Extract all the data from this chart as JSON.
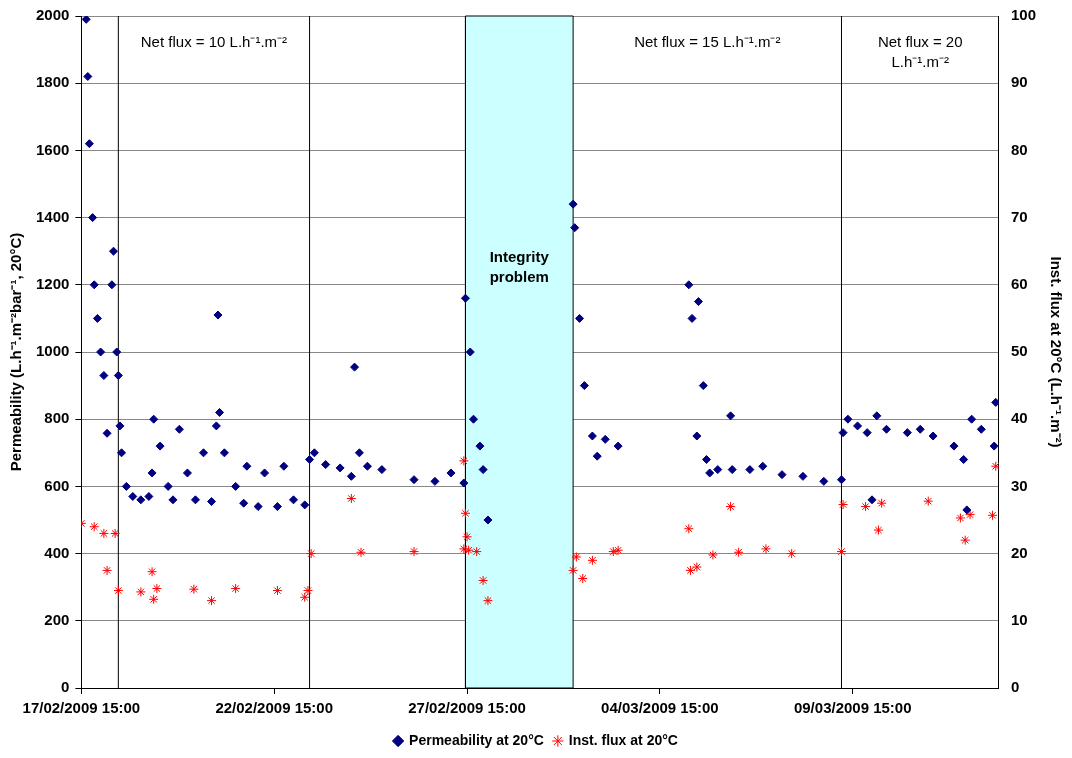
{
  "chart_data": {
    "type": "scatter",
    "xlabel": null,
    "ylabel": "Permeability (L.h⁻¹.m⁻²bar⁻¹, 20°C)",
    "y2label": "Inst. flux at 20°C (L.h⁻¹.m⁻²)",
    "xlim": [
      "2009-02-17T15:00",
      "2009-03-13T10:00"
    ],
    "xticks": [
      {
        "value": "2009-02-17T15:00",
        "label": "17/02/2009 15:00"
      },
      {
        "value": "2009-02-22T15:00",
        "label": "22/02/2009 15:00"
      },
      {
        "value": "2009-02-27T15:00",
        "label": "27/02/2009 15:00"
      },
      {
        "value": "2009-03-04T15:00",
        "label": "04/03/2009 15:00"
      },
      {
        "value": "2009-03-09T15:00",
        "label": "09/03/2009 15:00"
      }
    ],
    "ylim": [
      0,
      2000
    ],
    "yticks": [
      0,
      200,
      400,
      600,
      800,
      1000,
      1200,
      1400,
      1600,
      1800,
      2000
    ],
    "y2lim": [
      0,
      100
    ],
    "y2ticks": [
      0,
      10,
      20,
      30,
      40,
      50,
      60,
      70,
      80,
      90,
      100
    ],
    "grid": "y",
    "legend": "bottom",
    "ref_lines": [
      {
        "axis": "x",
        "value": "2009-02-18T14:00",
        "color": "#000000"
      },
      {
        "axis": "x",
        "value": "2009-02-23T13:00",
        "color": "#000000"
      },
      {
        "axis": "x",
        "value": "2009-02-27T14:00",
        "color": "#000000"
      },
      {
        "axis": "x",
        "value": "2009-03-09T08:00",
        "color": "#000000"
      }
    ],
    "bands": [
      {
        "axis": "x",
        "from": "2009-02-27T14:00",
        "to": "2009-03-02T09:00",
        "label": "Integrity problem",
        "color": "#ccffff"
      }
    ],
    "annotations": [
      "Net flux = 10 L.h⁻¹.m⁻²",
      "Net flux = 15 L.h⁻¹.m⁻²",
      "Net flux = 20 L.h⁻¹.m⁻²"
    ],
    "series": [
      {
        "name": "Permeability at 20°C",
        "color": "#000080",
        "marker": "diamond",
        "axis": "y",
        "x": [
          "2009-02-17T18:00",
          "2009-02-17T19:00",
          "2009-02-17T20:00",
          "2009-02-17T22:00",
          "2009-02-17T23:00",
          "2009-02-18T01:00",
          "2009-02-18T03:00",
          "2009-02-18T05:00",
          "2009-02-18T07:00",
          "2009-02-18T10:00",
          "2009-02-18T11:00",
          "2009-02-18T13:00",
          "2009-02-18T14:00",
          "2009-02-18T15:00",
          "2009-02-18T16:00",
          "2009-02-18T19:00",
          "2009-02-18T23:00",
          "2009-02-19T04:00",
          "2009-02-19T09:00",
          "2009-02-19T11:00",
          "2009-02-19T12:00",
          "2009-02-19T16:00",
          "2009-02-19T21:00",
          "2009-02-20T00:00",
          "2009-02-20T04:00",
          "2009-02-20T09:00",
          "2009-02-20T14:00",
          "2009-02-20T19:00",
          "2009-02-21T00:00",
          "2009-02-21T03:00",
          "2009-02-21T04:00",
          "2009-02-21T05:00",
          "2009-02-21T08:00",
          "2009-02-21T15:00",
          "2009-02-21T20:00",
          "2009-02-21T22:00",
          "2009-02-22T05:00",
          "2009-02-22T09:00",
          "2009-02-22T17:00",
          "2009-02-22T21:00",
          "2009-02-23T03:00",
          "2009-02-23T10:00",
          "2009-02-23T13:00",
          "2009-02-23T16:00",
          "2009-02-23T23:00",
          "2009-02-24T08:00",
          "2009-02-24T15:00",
          "2009-02-24T17:00",
          "2009-02-24T20:00",
          "2009-02-25T01:00",
          "2009-02-25T10:00",
          "2009-02-26T06:00",
          "2009-02-26T19:00",
          "2009-02-27T05:00",
          "2009-02-27T13:00",
          "2009-02-27T14:00",
          "2009-02-27T17:00",
          "2009-02-27T19:00",
          "2009-02-27T23:00",
          "2009-02-28T01:00",
          "2009-02-28T04:00",
          "2009-03-02T09:00",
          "2009-03-02T10:00",
          "2009-03-02T13:00",
          "2009-03-02T16:00",
          "2009-03-02T21:00",
          "2009-03-03T00:00",
          "2009-03-03T05:00",
          "2009-03-03T13:00",
          "2009-03-05T09:00",
          "2009-03-05T11:00",
          "2009-03-05T14:00",
          "2009-03-05T15:00",
          "2009-03-05T18:00",
          "2009-03-05T20:00",
          "2009-03-05T22:00",
          "2009-03-06T03:00",
          "2009-03-06T11:00",
          "2009-03-06T12:00",
          "2009-03-06T23:00",
          "2009-03-07T07:00",
          "2009-03-07T19:00",
          "2009-03-08T08:00",
          "2009-03-08T21:00",
          "2009-03-09T08:00",
          "2009-03-09T09:00",
          "2009-03-09T12:00",
          "2009-03-09T18:00",
          "2009-03-10T00:00",
          "2009-03-10T03:00",
          "2009-03-10T06:00",
          "2009-03-10T12:00",
          "2009-03-11T01:00",
          "2009-03-11T09:00",
          "2009-03-11T17:00",
          "2009-03-12T06:00",
          "2009-03-12T12:00",
          "2009-03-12T14:00",
          "2009-03-12T17:00",
          "2009-03-12T23:00",
          "2009-03-13T07:00",
          "2009-03-13T08:00"
        ],
        "values": [
          1990,
          1820,
          1620,
          1400,
          1200,
          1100,
          1000,
          930,
          758,
          1200,
          1300,
          1000,
          930,
          780,
          700,
          600,
          570,
          560,
          570,
          640,
          800,
          720,
          600,
          560,
          770,
          640,
          560,
          700,
          555,
          780,
          1110,
          820,
          700,
          600,
          550,
          660,
          540,
          640,
          540,
          660,
          560,
          545,
          680,
          700,
          665,
          655,
          630,
          955,
          700,
          660,
          650,
          620,
          615,
          640,
          610,
          1160,
          1000,
          800,
          720,
          650,
          500,
          1440,
          1370,
          1100,
          900,
          750,
          690,
          740,
          720,
          1200,
          1100,
          750,
          1150,
          900,
          680,
          640,
          650,
          810,
          650,
          650,
          660,
          635,
          630,
          615,
          620,
          760,
          800,
          780,
          760,
          560,
          810,
          770,
          760,
          770,
          750,
          720,
          680,
          530,
          800,
          770,
          720,
          850
        ]
      },
      {
        "name": "Inst. flux at 20°C",
        "color": "#ff0000",
        "marker": "cross",
        "axis": "y2",
        "x": [
          "2009-02-17T15:00",
          "2009-02-17T23:00",
          "2009-02-18T05:00",
          "2009-02-18T07:00",
          "2009-02-18T12:00",
          "2009-02-18T14:00",
          "2009-02-19T04:00",
          "2009-02-19T11:00",
          "2009-02-19T12:00",
          "2009-02-19T14:00",
          "2009-02-20T13:00",
          "2009-02-21T00:00",
          "2009-02-21T15:00",
          "2009-02-22T17:00",
          "2009-02-23T10:00",
          "2009-02-23T12:00",
          "2009-02-23T14:00",
          "2009-02-24T15:00",
          "2009-02-24T21:00",
          "2009-02-26T06:00",
          "2009-02-27T13:00",
          "2009-02-27T13:00",
          "2009-02-27T14:00",
          "2009-02-27T15:00",
          "2009-02-27T16:00",
          "2009-02-27T21:00",
          "2009-02-28T01:00",
          "2009-02-28T04:00",
          "2009-03-02T09:00",
          "2009-03-02T11:00",
          "2009-03-02T15:00",
          "2009-03-02T21:00",
          "2009-03-03T10:00",
          "2009-03-03T13:00",
          "2009-03-05T09:00",
          "2009-03-05T10:00",
          "2009-03-05T14:00",
          "2009-03-06T00:00",
          "2009-03-06T11:00",
          "2009-03-06T16:00",
          "2009-03-07T09:00",
          "2009-03-08T01:00",
          "2009-03-09T08:00",
          "2009-03-09T09:00",
          "2009-03-09T23:00",
          "2009-03-10T07:00",
          "2009-03-10T09:00",
          "2009-03-11T14:00",
          "2009-03-12T10:00",
          "2009-03-12T13:00",
          "2009-03-12T16:00",
          "2009-03-13T06:00",
          "2009-03-13T08:00"
        ],
        "values": [
          24.5,
          24,
          23,
          17.5,
          23,
          14.5,
          14.3,
          17.3,
          13.2,
          14.8,
          14.7,
          13,
          14.8,
          14.5,
          13.5,
          14.5,
          20,
          28.2,
          20.2,
          20.3,
          20.7,
          33.8,
          26,
          22.5,
          20.5,
          20.3,
          16,
          13,
          17.5,
          19.5,
          16.3,
          19,
          20.3,
          20.5,
          23.7,
          17.5,
          18,
          19.8,
          27,
          20.2,
          20.7,
          20,
          20.3,
          27.3,
          27,
          23.5,
          27.5,
          27.8,
          25.3,
          22,
          25.8,
          25.7,
          33
        ]
      }
    ]
  }
}
